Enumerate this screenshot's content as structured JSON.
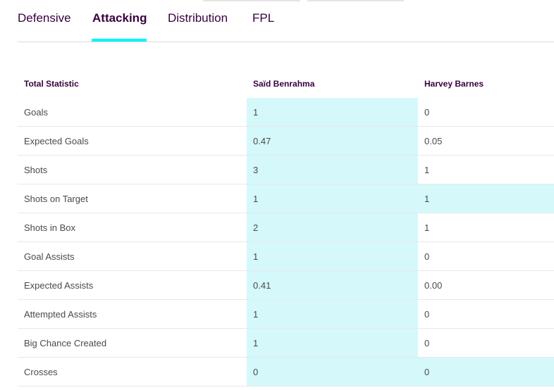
{
  "tabs": [
    {
      "label": "Defensive",
      "active": false
    },
    {
      "label": "Attacking",
      "active": true
    },
    {
      "label": "Distribution",
      "active": false
    },
    {
      "label": "FPL",
      "active": false
    }
  ],
  "colors": {
    "accent": "#04f5ff",
    "highlight": "#d5f8fb",
    "text": "#37003c"
  },
  "table": {
    "headers": [
      "Total Statistic",
      "Saïd Benrahma",
      "Harvey Barnes"
    ],
    "rows": [
      {
        "label": "Goals",
        "p1": "1",
        "p2": "0",
        "winner": "p1"
      },
      {
        "label": "Expected Goals",
        "p1": "0.47",
        "p2": "0.05",
        "winner": "p1"
      },
      {
        "label": "Shots",
        "p1": "3",
        "p2": "1",
        "winner": "p1"
      },
      {
        "label": "Shots on Target",
        "p1": "1",
        "p2": "1",
        "winner": "both"
      },
      {
        "label": "Shots in Box",
        "p1": "2",
        "p2": "1",
        "winner": "p1"
      },
      {
        "label": "Goal Assists",
        "p1": "1",
        "p2": "0",
        "winner": "p1"
      },
      {
        "label": "Expected Assists",
        "p1": "0.41",
        "p2": "0.00",
        "winner": "p1"
      },
      {
        "label": "Attempted Assists",
        "p1": "1",
        "p2": "0",
        "winner": "p1"
      },
      {
        "label": "Big Chance Created",
        "p1": "1",
        "p2": "0",
        "winner": "p1"
      },
      {
        "label": "Crosses",
        "p1": "0",
        "p2": "0",
        "winner": "both"
      }
    ]
  }
}
